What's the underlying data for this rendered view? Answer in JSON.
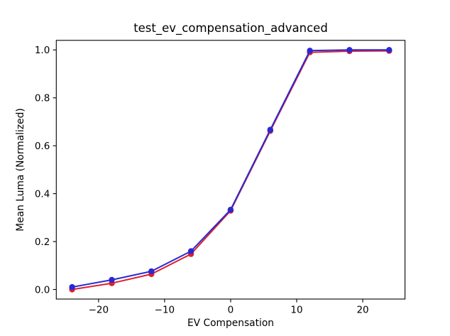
{
  "chart_data": {
    "type": "line",
    "title": "test_ev_compensation_advanced",
    "xlabel": "EV Compensation",
    "ylabel": "Mean Luma (Normalized)",
    "x": [
      -24,
      -18,
      -12,
      -6,
      0,
      6,
      12,
      18,
      24
    ],
    "series": [
      {
        "name": "red",
        "color": "#dd2030",
        "marker": "circle",
        "values": [
          0.0,
          0.026,
          0.064,
          0.148,
          0.329,
          0.662,
          0.99,
          0.995,
          0.996
        ]
      },
      {
        "name": "blue",
        "color": "#2929d4",
        "marker": "circle",
        "values": [
          0.01,
          0.04,
          0.076,
          0.16,
          0.333,
          0.667,
          0.997,
          1.0,
          1.0
        ]
      }
    ],
    "xlim": [
      -26.4,
      26.4
    ],
    "ylim": [
      -0.04,
      1.04
    ],
    "xticks": [
      -20,
      -10,
      0,
      10,
      20
    ],
    "xtick_labels": [
      "−20",
      "−10",
      "0",
      "10",
      "20"
    ],
    "yticks": [
      0.0,
      0.2,
      0.4,
      0.6,
      0.8,
      1.0
    ],
    "ytick_labels": [
      "0.0",
      "0.2",
      "0.4",
      "0.6",
      "0.8",
      "1.0"
    ],
    "grid": false,
    "legend": false,
    "background_color": "#ffffff",
    "axis_color": "#000000",
    "text_color": "#000000"
  }
}
